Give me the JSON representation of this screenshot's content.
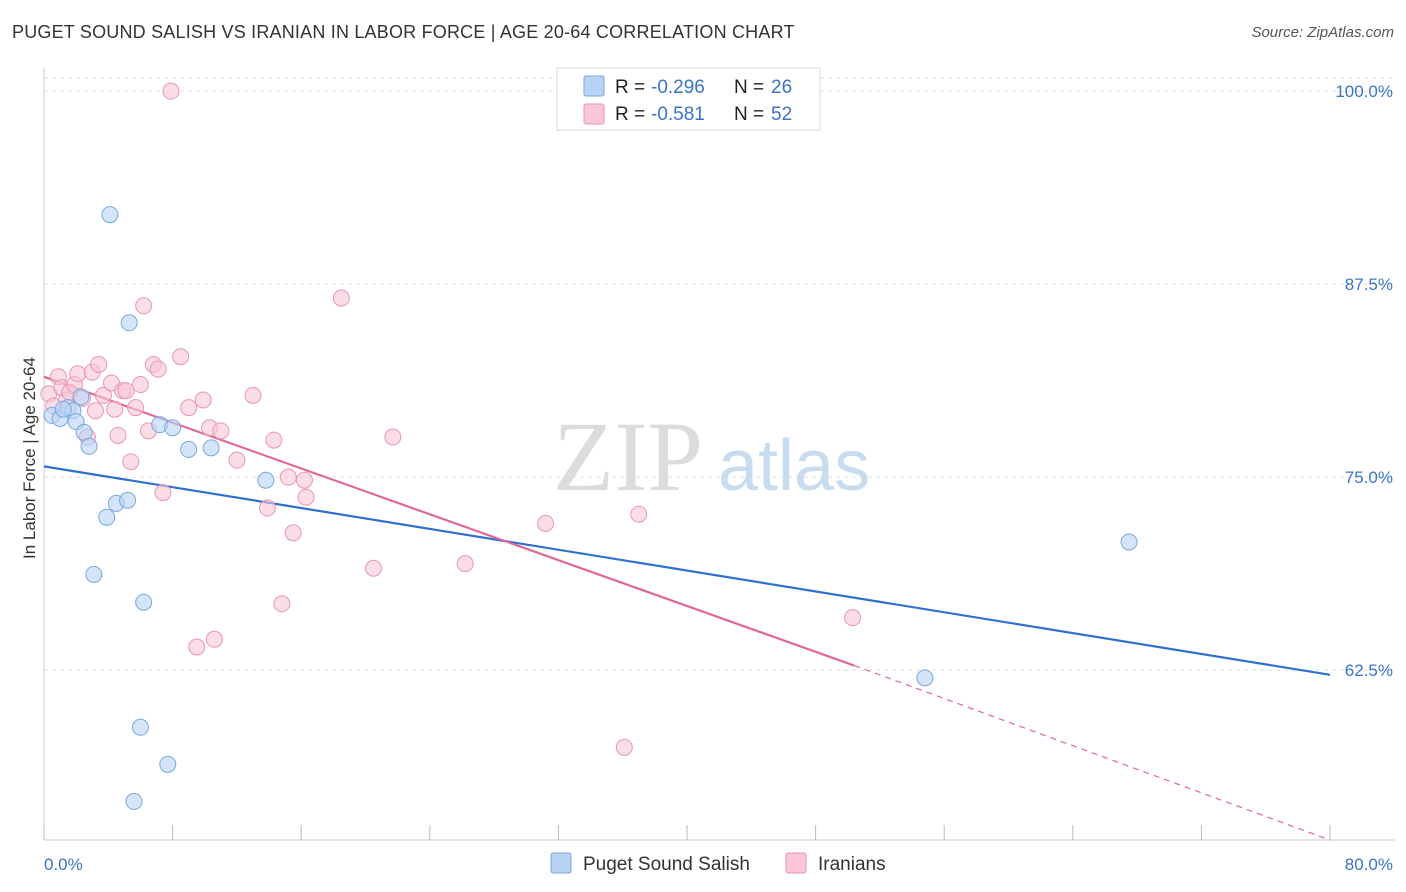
{
  "title": "PUGET SOUND SALISH VS IRANIAN IN LABOR FORCE | AGE 20-64 CORRELATION CHART",
  "source": "Source: ZipAtlas.com",
  "watermark": {
    "zip": "ZIP",
    "atlas": "atlas"
  },
  "colors": {
    "blue_fill": "#b9d3f5",
    "blue_stroke": "#7aa7e0",
    "blue_line": "#2f6fcf",
    "pink_fill": "#f8c6d6",
    "pink_stroke": "#e996b1",
    "pink_line": "#e0679a",
    "grid": "#dddddd",
    "tick_label": "#3a74c8"
  },
  "legend_top": [
    {
      "r_label": "R =",
      "r_value": "-0.296",
      "n_label": "N =",
      "n_value": "26"
    },
    {
      "r_label": "R =",
      "r_value": "-0.581",
      "n_label": "N =",
      "n_value": "52"
    }
  ],
  "legend_bottom": [
    "Puget Sound Salish",
    "Iranians"
  ],
  "chart_data": {
    "type": "scatter",
    "ylabel": "In Labor Force | Age 20-64",
    "xlim": [
      0,
      80
    ],
    "ylim": [
      51.5,
      101.5
    ],
    "x_tick_labels": [
      "0.0%",
      "80.0%"
    ],
    "y_ticks": [
      62.5,
      75.0,
      87.5,
      100.0
    ],
    "y_tick_labels": [
      "62.5%",
      "75.0%",
      "87.5%",
      "100.0%"
    ],
    "grid": true,
    "series": [
      {
        "name": "Puget Sound Salish",
        "points": [
          [
            0.5,
            79.0
          ],
          [
            1.0,
            78.8
          ],
          [
            1.5,
            79.5
          ],
          [
            1.8,
            79.3
          ],
          [
            2.0,
            78.6
          ],
          [
            2.3,
            80.2
          ],
          [
            2.5,
            77.9
          ],
          [
            2.8,
            77.0
          ],
          [
            3.1,
            68.7
          ],
          [
            3.9,
            72.4
          ],
          [
            4.1,
            92.0
          ],
          [
            4.5,
            73.3
          ],
          [
            5.2,
            73.5
          ],
          [
            5.3,
            85.0
          ],
          [
            6.0,
            58.8
          ],
          [
            6.2,
            66.9
          ],
          [
            7.2,
            78.4
          ],
          [
            7.7,
            56.4
          ],
          [
            8.0,
            78.2
          ],
          [
            9.0,
            76.8
          ],
          [
            10.4,
            76.9
          ],
          [
            13.8,
            74.8
          ],
          [
            5.6,
            54.0
          ],
          [
            67.5,
            70.8
          ],
          [
            54.8,
            62.0
          ],
          [
            1.2,
            79.4
          ]
        ],
        "trend": {
          "x0": 0,
          "y0": 75.7,
          "x1": 80,
          "y1": 62.2
        }
      },
      {
        "name": "Iranians",
        "points": [
          [
            0.3,
            80.4
          ],
          [
            0.6,
            79.6
          ],
          [
            0.9,
            81.5
          ],
          [
            1.1,
            80.8
          ],
          [
            1.4,
            80.0
          ],
          [
            1.6,
            80.5
          ],
          [
            1.9,
            81.0
          ],
          [
            2.1,
            81.7
          ],
          [
            2.4,
            80.1
          ],
          [
            2.7,
            77.6
          ],
          [
            3.0,
            81.8
          ],
          [
            3.2,
            79.3
          ],
          [
            3.4,
            82.3
          ],
          [
            3.7,
            80.3
          ],
          [
            4.2,
            81.1
          ],
          [
            4.4,
            79.4
          ],
          [
            4.6,
            77.7
          ],
          [
            4.9,
            80.6
          ],
          [
            5.1,
            80.6
          ],
          [
            5.4,
            76.0
          ],
          [
            5.7,
            79.5
          ],
          [
            6.0,
            81.0
          ],
          [
            6.2,
            86.1
          ],
          [
            6.5,
            78.0
          ],
          [
            6.8,
            82.3
          ],
          [
            7.1,
            82.0
          ],
          [
            7.4,
            74.0
          ],
          [
            7.9,
            100.0
          ],
          [
            8.5,
            82.8
          ],
          [
            9.0,
            79.5
          ],
          [
            9.5,
            64.0
          ],
          [
            9.9,
            80.0
          ],
          [
            10.3,
            78.2
          ],
          [
            10.6,
            64.5
          ],
          [
            11.0,
            78.0
          ],
          [
            12.0,
            76.1
          ],
          [
            13.0,
            80.3
          ],
          [
            13.9,
            73.0
          ],
          [
            14.3,
            77.4
          ],
          [
            14.8,
            66.8
          ],
          [
            15.2,
            75.0
          ],
          [
            15.5,
            71.4
          ],
          [
            16.3,
            73.7
          ],
          [
            16.2,
            74.8
          ],
          [
            18.5,
            86.6
          ],
          [
            20.5,
            69.1
          ],
          [
            21.7,
            77.6
          ],
          [
            26.2,
            69.4
          ],
          [
            31.2,
            72.0
          ],
          [
            36.1,
            57.5
          ],
          [
            37.0,
            72.6
          ],
          [
            50.3,
            65.9
          ]
        ],
        "trend": {
          "x0": 0,
          "y0": 81.5,
          "x1": 50.4,
          "y1": 62.8
        },
        "trend_extension": {
          "x0": 50.4,
          "y0": 62.8,
          "x1": 80,
          "y1": 51.5
        }
      }
    ]
  }
}
